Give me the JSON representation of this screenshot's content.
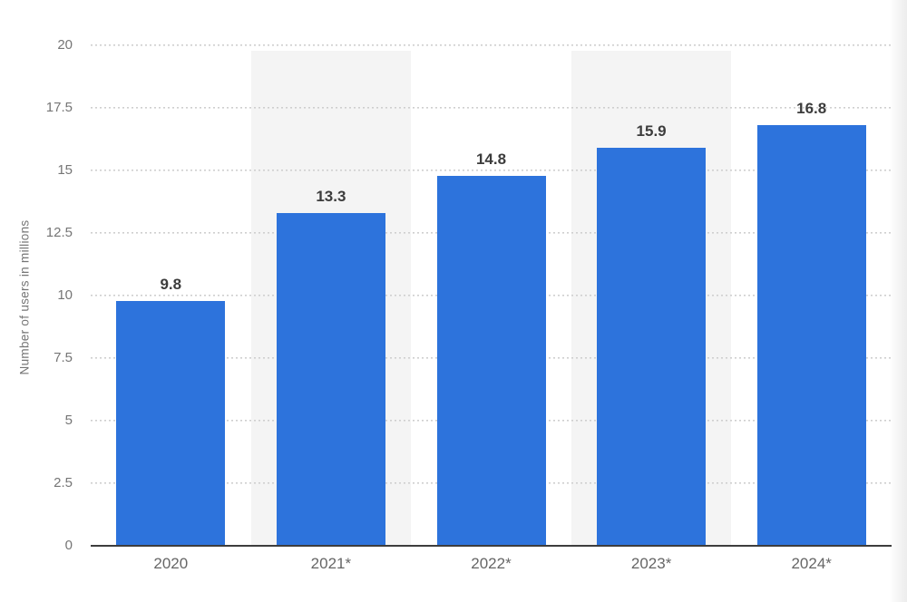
{
  "chart_data": {
    "type": "bar",
    "title": "",
    "xlabel": "",
    "ylabel": "Number of users in millions",
    "categories": [
      "2020",
      "2021*",
      "2022*",
      "2023*",
      "2024*"
    ],
    "values": [
      9.8,
      13.3,
      14.8,
      15.9,
      16.8
    ],
    "value_labels": [
      "9.8",
      "13.3",
      "14.8",
      "15.9",
      "16.8"
    ],
    "ylim": [
      0,
      20
    ],
    "ytick_values": [
      0,
      2.5,
      5,
      7.5,
      10,
      12.5,
      15,
      17.5,
      20
    ],
    "ytick_labels": [
      "0",
      "2.5",
      "5",
      "7.5",
      "10",
      "12.5",
      "15",
      "17.5",
      "20"
    ],
    "grid": "horizontal-dotted",
    "legend": "none",
    "plot_bands": "alternating columns, gray on 2021* and 2023*"
  },
  "colors": {
    "bar": "#2d73dc",
    "band_gray": "#f4f4f4",
    "band_white": "#ffffff",
    "grid_dot": "#cfcfcf",
    "axis_line": "#3d3d3d",
    "y_tick_label": "#757575",
    "x_tick_label": "#666666",
    "value_label": "#3c3c3c",
    "background": "#ffffff"
  }
}
